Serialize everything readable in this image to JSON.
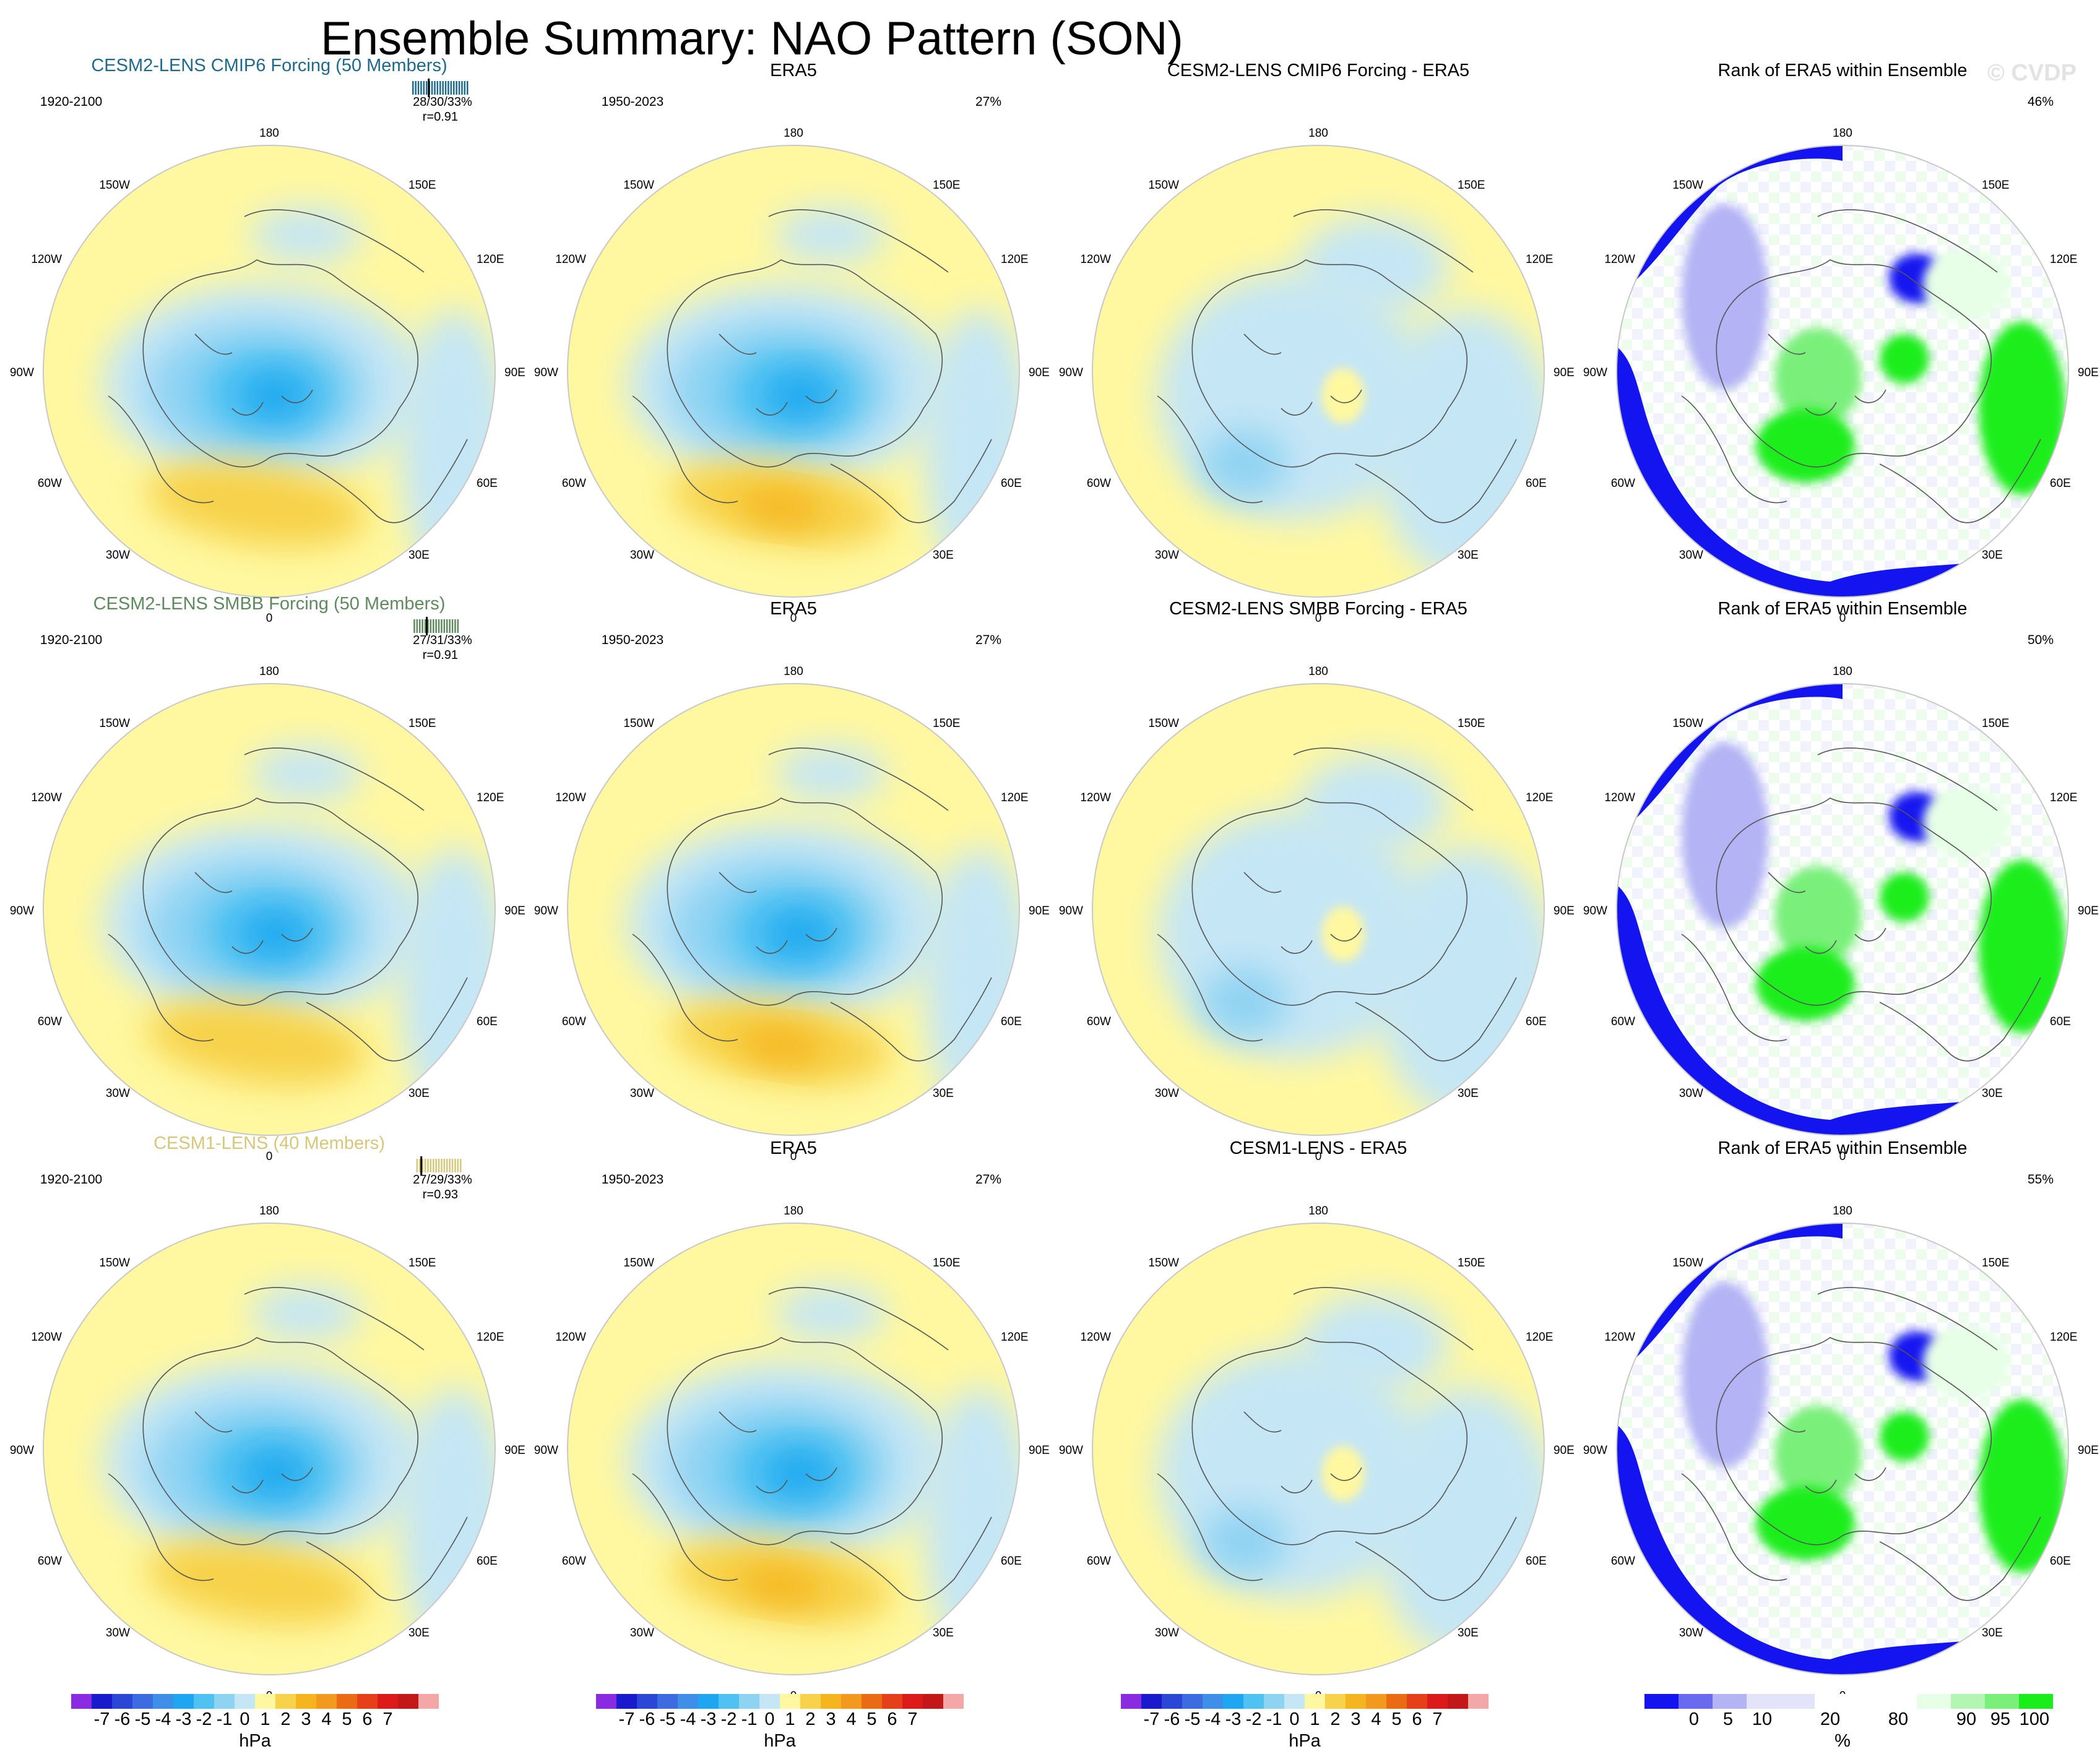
{
  "header": {
    "title": "Ensemble Summary: NAO Pattern (SON)",
    "watermark": "© CVDP"
  },
  "chart_data": {
    "type": "heatmap",
    "projection": "north-polar-stereographic",
    "rows": [
      {
        "model_title": "CESM2-LENS CMIP6 Forcing (50 Members)",
        "model_color": "#1f6a8a",
        "model_period": "1920-2100",
        "model_pct_line": "28/30/33%",
        "model_r": "r=0.91",
        "ticks": [
          0.1,
          0.14,
          0.18,
          0.22,
          0.26,
          0.3,
          0.34,
          0.38,
          0.42,
          0.46,
          0.5,
          0.54,
          0.58,
          0.62,
          0.66,
          0.7,
          0.74,
          0.78,
          0.82,
          0.86,
          0.9
        ],
        "ticks_major": 0.33,
        "obs_title": "ERA5",
        "obs_period": "1950-2023",
        "obs_pct": "27%",
        "diff_title": "CESM2-LENS CMIP6 Forcing - ERA5",
        "rank_title": "Rank of ERA5 within Ensemble",
        "rank_pct": "46%"
      },
      {
        "model_title": "CESM2-LENS SMBB Forcing (50 Members)",
        "model_color": "#5e8a5e",
        "model_period": "1920-2100",
        "model_pct_line": "27/31/33%",
        "model_r": "r=0.91",
        "ticks": [
          0.12,
          0.16,
          0.2,
          0.24,
          0.28,
          0.32,
          0.36,
          0.4,
          0.44,
          0.48,
          0.52,
          0.56,
          0.6,
          0.64,
          0.68,
          0.72,
          0.76
        ],
        "ticks_major": 0.3,
        "obs_title": "ERA5",
        "obs_period": "1950-2023",
        "obs_pct": "27%",
        "diff_title": "CESM2-LENS SMBB Forcing - ERA5",
        "rank_title": "Rank of ERA5 within Ensemble",
        "rank_pct": "50%"
      },
      {
        "model_title": "CESM1-LENS (40 Members)",
        "model_color": "#d6c77a",
        "model_period": "1920-2100",
        "model_pct_line": "27/29/33%",
        "model_r": "r=0.93",
        "ticks": [
          0.16,
          0.2,
          0.24,
          0.28,
          0.32,
          0.36,
          0.4,
          0.44,
          0.48,
          0.52,
          0.56,
          0.6,
          0.64,
          0.68,
          0.72,
          0.76,
          0.8
        ],
        "ticks_major": 0.22,
        "obs_title": "ERA5",
        "obs_period": "1950-2023",
        "obs_pct": "27%",
        "diff_title": "CESM1-LENS - ERA5",
        "rank_title": "Rank of ERA5 within Ensemble",
        "rank_pct": "55%"
      }
    ],
    "map_labels": {
      "lon_180": "180",
      "lon_150w": "150W",
      "lon_150e": "150E",
      "lon_120w": "120W",
      "lon_120e": "120E",
      "lon_90w": "90W",
      "lon_90e": "90E",
      "lon_60w": "60W",
      "lon_60e": "60E",
      "lon_30w": "30W",
      "lon_30e": "30E",
      "lon_0": "0"
    },
    "hpa_colorbar": {
      "unit": "hPa",
      "colors": [
        "#8a2be2",
        "#1a1acd",
        "#2b47d6",
        "#3d6be0",
        "#3f8fe8",
        "#1ea7f0",
        "#4fc2f2",
        "#8fd3f3",
        "#c5e6f5",
        "#fff8a0",
        "#f7d24a",
        "#f5b51e",
        "#f19a1e",
        "#eb6b14",
        "#e5401a",
        "#dd1a1a",
        "#c21818",
        "#f4a7a7"
      ],
      "labels": [
        "-7",
        "-6",
        "-5",
        "-4",
        "-3",
        "-2",
        "-1",
        "0",
        "1",
        "2",
        "3",
        "4",
        "5",
        "6",
        "7"
      ]
    },
    "rank_colorbar": {
      "unit": "%",
      "colors": [
        "#1414f0",
        "#6a6af0",
        "#b3b3f5",
        "#e3e3fa",
        "#ffffff",
        "#ffffff",
        "#e6ffe6",
        "#b3f5b3",
        "#7af07a",
        "#1aee1a"
      ],
      "labels": [
        "0",
        "5",
        "10",
        "20",
        "80",
        "90",
        "95",
        "100"
      ]
    }
  }
}
